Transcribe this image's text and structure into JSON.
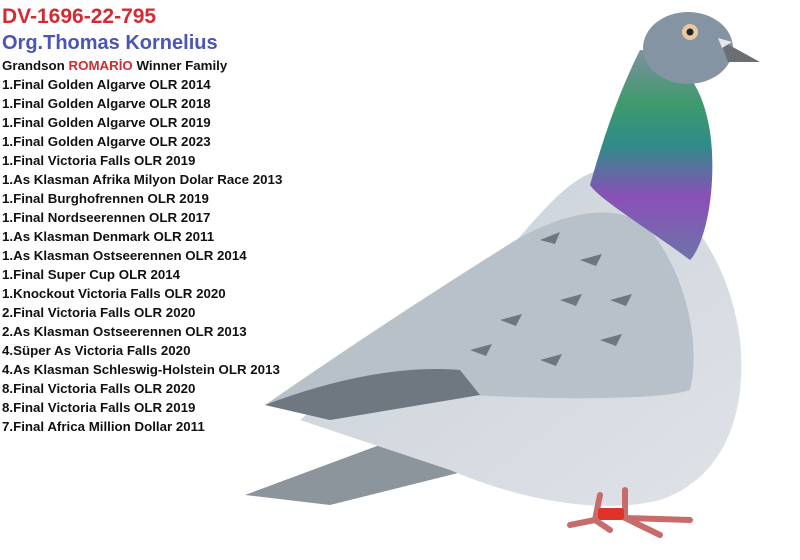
{
  "ring_number": "DV-1696-22-795",
  "breeder": "Org.Thomas Kornelius",
  "family": {
    "prefix": "Grandson",
    "highlight": "ROMARİO",
    "suffix": "Winner Family"
  },
  "results": [
    "1.Final Golden Algarve OLR 2014",
    "1.Final Golden Algarve OLR 2018",
    "1.Final Golden Algarve OLR 2019",
    "1.Final Golden Algarve OLR 2023",
    "1.Final Victoria Falls OLR 2019",
    "1.As Klasman Afrika Milyon Dolar Race 2013",
    "1.Final Burghofrennen OLR 2019",
    "1.Final Nordseerennen OLR 2017",
    "1.As Klasman Denmark OLR 2011",
    "1.As Klasman Ostseerennen OLR 2014",
    "1.Final Super Cup OLR 2014",
    "1.Knockout Victoria Falls OLR 2020",
    "2.Final Victoria Falls OLR 2020",
    "2.As Klasman Ostseerennen OLR 2013",
    "4.Süper As Victoria Falls 2020",
    "4.As Klasman Schleswig-Holstein OLR 2013",
    "8.Final Victoria Falls OLR 2020",
    "8.Final Victoria Falls OLR 2019",
    "7.Final Africa Million Dollar 2011"
  ],
  "colors": {
    "ring": "#d42a32",
    "breeder": "#4b55b5",
    "highlight": "#d42a32"
  }
}
